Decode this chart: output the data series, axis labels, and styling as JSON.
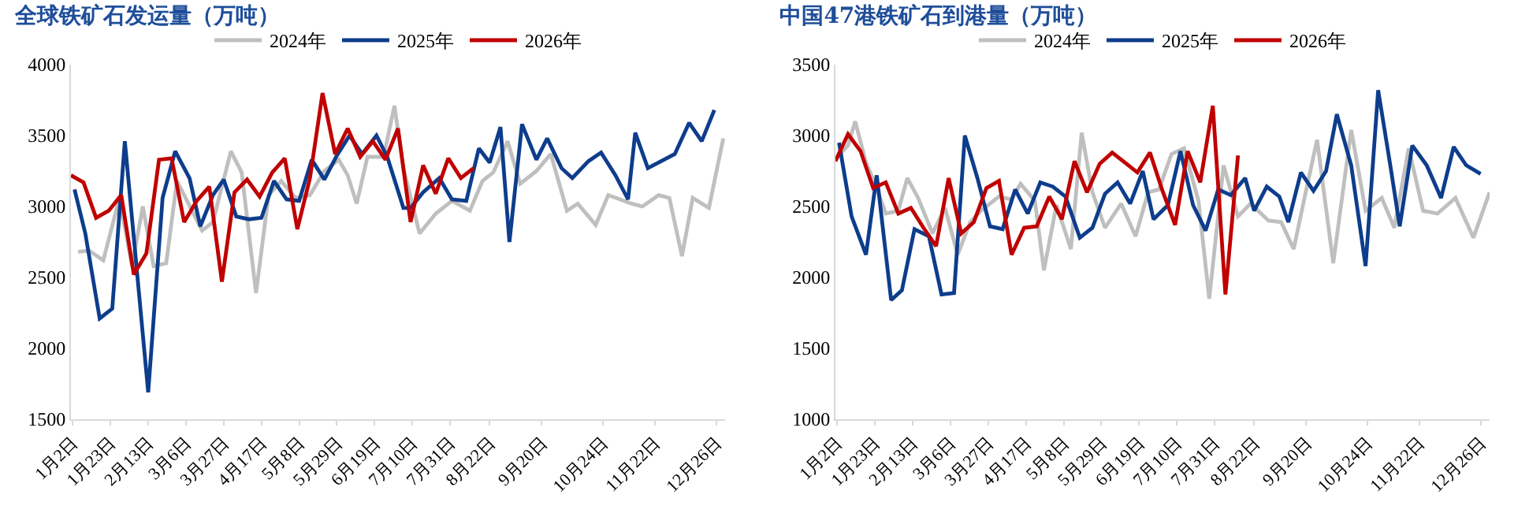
{
  "chart_data": [
    {
      "type": "line",
      "title": "全球铁矿石发运量（万吨）",
      "legend": "top",
      "grid": false,
      "marker": "none",
      "line_style": "solid",
      "xlim": [
        "--01-01",
        "--12-31"
      ],
      "xticks": [
        {
          "value": "--01-02",
          "label": "1月2日"
        },
        {
          "value": "--01-23",
          "label": "1月23日"
        },
        {
          "value": "--02-13",
          "label": "2月13日"
        },
        {
          "value": "--03-06",
          "label": "3月6日"
        },
        {
          "value": "--03-27",
          "label": "3月27日"
        },
        {
          "value": "--04-17",
          "label": "4月17日"
        },
        {
          "value": "--05-08",
          "label": "5月8日"
        },
        {
          "value": "--05-29",
          "label": "5月29日"
        },
        {
          "value": "--06-19",
          "label": "6月19日"
        },
        {
          "value": "--07-10",
          "label": "7月10日"
        },
        {
          "value": "--07-31",
          "label": "7月31日"
        },
        {
          "value": "--08-22",
          "label": "8月22日"
        },
        {
          "value": "--09-20",
          "label": "9月20日"
        },
        {
          "value": "--10-24",
          "label": "10月24日"
        },
        {
          "value": "--11-22",
          "label": "11月22日"
        },
        {
          "value": "--12-26",
          "label": "12月26日"
        }
      ],
      "ylim": [
        1500,
        4000
      ],
      "yticks": [
        1500,
        2000,
        2500,
        3000,
        3500,
        4000
      ],
      "series": [
        {
          "name": "2024年",
          "color": "#bfbfbf",
          "x": [
            "--01-05",
            "--01-11",
            "--01-19",
            "--01-28",
            "--02-04",
            "--02-10",
            "--02-16",
            "--02-23",
            "--03-01",
            "--03-15",
            "--03-21",
            "--03-31",
            "--04-06",
            "--04-14",
            "--04-21",
            "--04-28",
            "--05-06",
            "--05-14",
            "--05-22",
            "--05-30",
            "--06-04",
            "--06-09",
            "--06-15",
            "--06-24",
            "--06-30",
            "--07-05",
            "--07-14",
            "--07-23",
            "--08-01",
            "--08-11",
            "--08-18",
            "--08-24",
            "--09-01",
            "--09-08",
            "--09-17",
            "--09-25",
            "--10-04",
            "--10-10",
            "--10-20",
            "--10-27",
            "--11-09",
            "--11-15",
            "--11-24",
            "--11-30",
            "--12-07",
            "--12-13",
            "--12-22",
            "--12-30"
          ],
          "values": [
            2680,
            2690,
            2620,
            3060,
            2580,
            3000,
            2580,
            2600,
            3180,
            2830,
            2890,
            3390,
            3240,
            2390,
            3080,
            3180,
            3060,
            3080,
            3250,
            3330,
            3220,
            3020,
            3350,
            3350,
            3710,
            3270,
            2810,
            2950,
            3040,
            2970,
            3180,
            3240,
            3460,
            3160,
            3250,
            3370,
            2970,
            3020,
            2870,
            3080,
            3020,
            3000,
            3080,
            3060,
            2650,
            3060,
            2990,
            3480
          ]
        },
        {
          "name": "2025年",
          "color": "#0d3d8c",
          "x": [
            "--01-03",
            "--01-09",
            "--01-17",
            "--01-24",
            "--01-31",
            "--02-13",
            "--02-21",
            "--02-28",
            "--03-08",
            "--03-14",
            "--03-21",
            "--03-27",
            "--04-03",
            "--04-10",
            "--04-17",
            "--04-24",
            "--05-01",
            "--05-08",
            "--05-15",
            "--05-22",
            "--05-29",
            "--06-05",
            "--06-12",
            "--06-20",
            "--06-26",
            "--07-05",
            "--07-09",
            "--07-16",
            "--07-25",
            "--08-01",
            "--08-09",
            "--08-16",
            "--08-22",
            "--08-28",
            "--09-02",
            "--09-09",
            "--09-17",
            "--09-23",
            "--10-01",
            "--10-07",
            "--10-16",
            "--10-23",
            "--10-31",
            "--11-07",
            "--11-11",
            "--11-18",
            "--12-03",
            "--12-11",
            "--12-18",
            "--12-25"
          ],
          "values": [
            3120,
            2810,
            2210,
            2280,
            3460,
            1690,
            3060,
            3390,
            3200,
            2860,
            3080,
            3190,
            2930,
            2910,
            2920,
            3180,
            3050,
            3040,
            3330,
            3190,
            3360,
            3500,
            3370,
            3500,
            3350,
            2990,
            2990,
            3100,
            3200,
            3050,
            3040,
            3410,
            3310,
            3560,
            2750,
            3580,
            3330,
            3480,
            3270,
            3200,
            3320,
            3380,
            3220,
            3050,
            3520,
            3270,
            3370,
            3590,
            3460,
            3680
          ]
        },
        {
          "name": "2026年",
          "color": "#c00000",
          "x": [
            "--01-01",
            "--01-08",
            "--01-15",
            "--01-22",
            "--01-29",
            "--02-05",
            "--02-12",
            "--02-19",
            "--02-26",
            "--03-05",
            "--03-12",
            "--03-19",
            "--03-26",
            "--04-02",
            "--04-09",
            "--04-16",
            "--04-23",
            "--04-30",
            "--05-07",
            "--05-14",
            "--05-21",
            "--05-28",
            "--06-04",
            "--06-11",
            "--06-18",
            "--06-25",
            "--07-02",
            "--07-09",
            "--07-16",
            "--07-23",
            "--07-30",
            "--08-06",
            "--08-13"
          ],
          "values": [
            3220,
            3170,
            2920,
            2970,
            3080,
            2520,
            2670,
            3330,
            3340,
            2890,
            3040,
            3140,
            2470,
            3100,
            3190,
            3070,
            3240,
            3340,
            2840,
            3200,
            3800,
            3370,
            3550,
            3350,
            3460,
            3330,
            3550,
            2890,
            3290,
            3090,
            3340,
            3200,
            3270
          ]
        }
      ]
    },
    {
      "type": "line",
      "title": "中国47港铁矿石到港量（万吨）",
      "legend": "top",
      "grid": false,
      "marker": "none",
      "line_style": "solid",
      "xlim": [
        "--01-01",
        "--12-31"
      ],
      "xticks": [
        {
          "value": "--01-02",
          "label": "1月2日"
        },
        {
          "value": "--01-23",
          "label": "1月23日"
        },
        {
          "value": "--02-13",
          "label": "2月13日"
        },
        {
          "value": "--03-06",
          "label": "3月6日"
        },
        {
          "value": "--03-27",
          "label": "3月27日"
        },
        {
          "value": "--04-17",
          "label": "4月17日"
        },
        {
          "value": "--05-08",
          "label": "5月8日"
        },
        {
          "value": "--05-29",
          "label": "5月29日"
        },
        {
          "value": "--06-19",
          "label": "6月19日"
        },
        {
          "value": "--07-10",
          "label": "7月10日"
        },
        {
          "value": "--07-31",
          "label": "7月31日"
        },
        {
          "value": "--08-22",
          "label": "8月22日"
        },
        {
          "value": "--09-20",
          "label": "9月20日"
        },
        {
          "value": "--10-24",
          "label": "10月24日"
        },
        {
          "value": "--11-22",
          "label": "11月22日"
        },
        {
          "value": "--12-26",
          "label": "12月26日"
        }
      ],
      "ylim": [
        1000,
        3500
      ],
      "yticks": [
        1000,
        1500,
        2000,
        2500,
        3000,
        3500
      ],
      "series": [
        {
          "name": "2024年",
          "color": "#bfbfbf",
          "x": [
            "--01-02",
            "--01-08",
            "--01-12",
            "--01-18",
            "--01-24",
            "--01-29",
            "--02-05",
            "--02-10",
            "--02-16",
            "--02-24",
            "--03-03",
            "--03-10",
            "--03-17",
            "--03-23",
            "--04-02",
            "--04-09",
            "--04-14",
            "--04-22",
            "--04-27",
            "--05-04",
            "--05-12",
            "--05-18",
            "--05-24",
            "--05-31",
            "--06-09",
            "--06-17",
            "--06-24",
            "--06-30",
            "--07-07",
            "--07-14",
            "--07-22",
            "--07-28",
            "--08-05",
            "--08-13",
            "--08-20",
            "--08-30",
            "--09-06",
            "--09-13",
            "--09-19",
            "--09-26",
            "--10-05",
            "--10-15",
            "--10-23",
            "--11-01",
            "--11-08",
            "--11-16",
            "--11-24",
            "--12-02",
            "--12-12",
            "--12-22",
            "--12-31"
          ],
          "values": [
            2850,
            2930,
            3100,
            2810,
            2630,
            2450,
            2470,
            2700,
            2560,
            2310,
            2490,
            2160,
            2390,
            2470,
            2570,
            2550,
            2660,
            2540,
            2050,
            2510,
            2200,
            3020,
            2600,
            2350,
            2520,
            2290,
            2600,
            2620,
            2870,
            2910,
            2540,
            1850,
            2790,
            2430,
            2520,
            2400,
            2390,
            2200,
            2560,
            2970,
            2100,
            3040,
            2470,
            2560,
            2350,
            2910,
            2470,
            2450,
            2560,
            2280,
            2600
          ]
        },
        {
          "name": "2025年",
          "color": "#0d3d8c",
          "x": [
            "--01-03",
            "--01-10",
            "--01-18",
            "--01-24",
            "--02-01",
            "--02-07",
            "--02-14",
            "--02-22",
            "--03-01",
            "--03-08",
            "--03-14",
            "--03-21",
            "--03-28",
            "--04-04",
            "--04-11",
            "--04-18",
            "--04-25",
            "--05-02",
            "--05-09",
            "--05-17",
            "--05-24",
            "--05-31",
            "--06-07",
            "--06-14",
            "--06-21",
            "--06-27",
            "--07-05",
            "--07-12",
            "--07-19",
            "--07-26",
            "--08-02",
            "--08-09",
            "--08-17",
            "--08-22",
            "--08-29",
            "--09-05",
            "--09-10",
            "--09-17",
            "--09-24",
            "--10-01",
            "--10-07",
            "--10-15",
            "--10-23",
            "--10-30",
            "--11-06",
            "--11-11",
            "--11-18",
            "--11-26",
            "--12-04",
            "--12-11",
            "--12-18",
            "--12-26"
          ],
          "values": [
            2950,
            2430,
            2160,
            2720,
            1840,
            1910,
            2340,
            2290,
            1880,
            1890,
            3000,
            2700,
            2360,
            2340,
            2620,
            2450,
            2670,
            2640,
            2570,
            2280,
            2350,
            2590,
            2670,
            2520,
            2750,
            2410,
            2510,
            2890,
            2510,
            2330,
            2620,
            2580,
            2700,
            2470,
            2640,
            2570,
            2390,
            2740,
            2610,
            2750,
            3150,
            2790,
            2080,
            3320,
            2770,
            2360,
            2930,
            2790,
            2560,
            2920,
            2790,
            2730
          ]
        },
        {
          "name": "2026年",
          "color": "#c00000",
          "x": [
            "--01-01",
            "--01-08",
            "--01-15",
            "--01-22",
            "--01-29",
            "--02-05",
            "--02-12",
            "--02-19",
            "--02-26",
            "--03-05",
            "--03-12",
            "--03-19",
            "--03-26",
            "--04-02",
            "--04-09",
            "--04-16",
            "--04-23",
            "--04-30",
            "--05-07",
            "--05-14",
            "--05-21",
            "--05-28",
            "--06-04",
            "--06-11",
            "--06-18",
            "--06-25",
            "--07-02",
            "--07-09",
            "--07-16",
            "--07-23",
            "--07-30",
            "--08-06",
            "--08-13"
          ],
          "values": [
            2820,
            3010,
            2890,
            2630,
            2670,
            2450,
            2490,
            2350,
            2220,
            2700,
            2310,
            2390,
            2630,
            2680,
            2160,
            2350,
            2360,
            2570,
            2410,
            2820,
            2600,
            2800,
            2880,
            2810,
            2740,
            2880,
            2610,
            2370,
            2890,
            2670,
            3210,
            1880,
            2860
          ]
        }
      ]
    }
  ]
}
